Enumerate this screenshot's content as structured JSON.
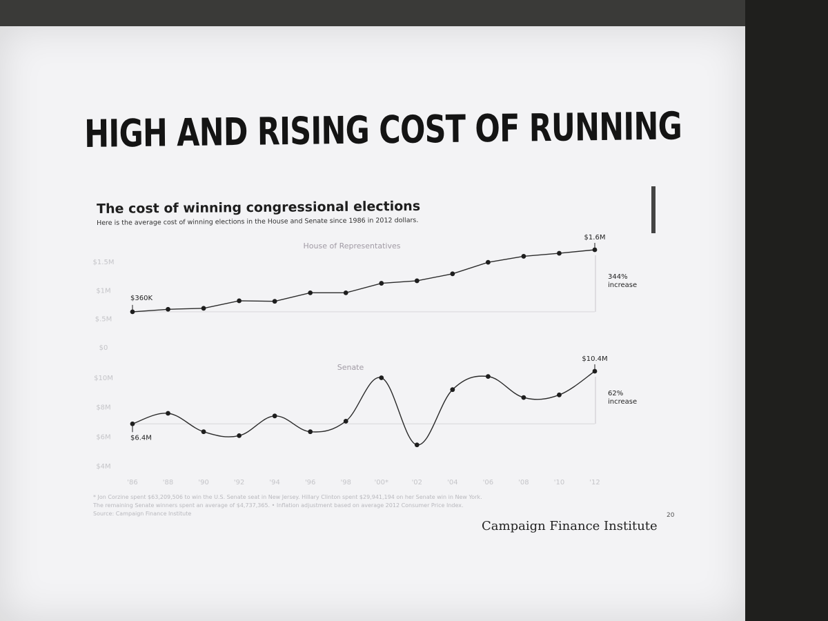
{
  "slide": {
    "headline": "HIGH AND RISING COST OF RUNNING",
    "brand": "Campaign Finance Institute",
    "page_number": "20",
    "footnote_lines": [
      "* Jon Corzine spent $63,209,506 to win the U.S. Senate seat in New Jersey. Hillary Clinton spent $29,941,194 on her Senate win in New York.",
      "The remaining Senate winners spent an average of $4,737,365. • Inflation adjustment based on average 2012 Consumer Price Index.",
      "Source: Campaign Finance Institute"
    ]
  },
  "chart_data": [
    {
      "type": "line",
      "title": "The cost of winning congressional elections",
      "subtitle": "Here is the average cost of winning elections in the House and Senate since 1986 in 2012 dollars.",
      "panel_title": "House of Representatives",
      "categories": [
        "'86",
        "'88",
        "'90",
        "'92",
        "'94",
        "'96",
        "'98",
        "'00*",
        "'02",
        "'04",
        "'06",
        "'08",
        "'10",
        "'12"
      ],
      "values": [
        0.36,
        0.41,
        0.43,
        0.58,
        0.57,
        0.74,
        0.74,
        0.93,
        0.98,
        1.12,
        1.35,
        1.47,
        1.53,
        1.6
      ],
      "y_unit": "million $",
      "y_ticks": [
        {
          "value": 0,
          "label": "$0"
        },
        {
          "value": 0.5,
          "label": "$.5M"
        },
        {
          "value": 1.0,
          "label": "$1M"
        },
        {
          "value": 1.5,
          "label": "$1.5M"
        }
      ],
      "ylim": [
        0,
        1.6
      ],
      "annotations": {
        "start": "$360K",
        "end": "$1.6M",
        "change_line1": "344%",
        "change_line2": "increase"
      },
      "grid": false
    },
    {
      "type": "line",
      "panel_title": "Senate",
      "categories": [
        "'86",
        "'88",
        "'90",
        "'92",
        "'94",
        "'96",
        "'98",
        "'00*",
        "'02",
        "'04",
        "'06",
        "'08",
        "'10",
        "'12"
      ],
      "values": [
        6.4,
        7.2,
        5.8,
        5.5,
        7.0,
        5.8,
        6.6,
        9.9,
        4.8,
        9.0,
        10.0,
        8.4,
        8.6,
        10.4
      ],
      "y_unit": "million $",
      "y_ticks": [
        {
          "value": 4,
          "label": "$4M"
        },
        {
          "value": 6,
          "label": "$6M"
        },
        {
          "value": 8,
          "label": "$8M"
        },
        {
          "value": 10,
          "label": "$10M"
        }
      ],
      "ylim": [
        4,
        10.4
      ],
      "annotations": {
        "start": "$6.4M",
        "end": "$10.4M",
        "change_line1": "62%",
        "change_line2": "increase"
      },
      "grid": false
    }
  ]
}
